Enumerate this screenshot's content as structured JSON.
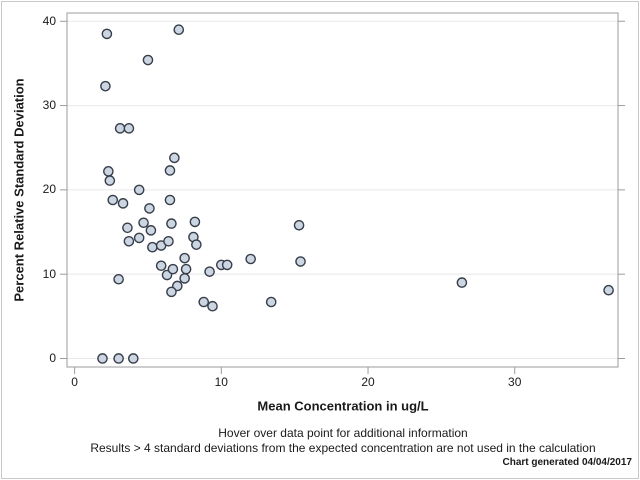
{
  "chart_data": {
    "type": "scatter",
    "title": "",
    "xlabel": "Mean Concentration in ug/L",
    "ylabel": "Percent Relative Standard Deviation",
    "xlim": [
      -0.52,
      37.04
    ],
    "ylim": [
      -1.01,
      40.98
    ],
    "x_ticks": [
      0,
      10,
      20,
      30
    ],
    "y_ticks": [
      0,
      10,
      20,
      30,
      40
    ],
    "grid": "horizontal-only",
    "legend": false,
    "marker": {
      "fill": "#ccd6e3",
      "stroke": "#373e49",
      "radius": 4.6
    },
    "frame_color": "#9b9b9b",
    "grid_color": "#e8e8e8",
    "points": [
      [
        2.2,
        38.5
      ],
      [
        7.1,
        39.0
      ],
      [
        5.0,
        35.4
      ],
      [
        2.1,
        32.3
      ],
      [
        3.1,
        27.3
      ],
      [
        3.7,
        27.3
      ],
      [
        6.8,
        23.8
      ],
      [
        6.5,
        22.3
      ],
      [
        2.3,
        22.2
      ],
      [
        2.4,
        21.1
      ],
      [
        4.4,
        20.0
      ],
      [
        2.6,
        18.8
      ],
      [
        3.3,
        18.4
      ],
      [
        6.5,
        18.8
      ],
      [
        5.1,
        17.8
      ],
      [
        4.7,
        16.1
      ],
      [
        6.6,
        16.0
      ],
      [
        8.2,
        16.2
      ],
      [
        3.6,
        15.5
      ],
      [
        5.2,
        15.2
      ],
      [
        4.4,
        14.3
      ],
      [
        3.7,
        13.9
      ],
      [
        5.3,
        13.2
      ],
      [
        5.9,
        13.4
      ],
      [
        6.4,
        13.9
      ],
      [
        8.1,
        14.4
      ],
      [
        8.3,
        13.5
      ],
      [
        5.9,
        11.0
      ],
      [
        7.5,
        11.9
      ],
      [
        6.3,
        9.9
      ],
      [
        6.7,
        10.6
      ],
      [
        7.6,
        10.6
      ],
      [
        7.5,
        9.5
      ],
      [
        7.0,
        8.6
      ],
      [
        6.6,
        7.9
      ],
      [
        3.0,
        9.4
      ],
      [
        8.8,
        6.7
      ],
      [
        9.4,
        6.2
      ],
      [
        9.2,
        10.3
      ],
      [
        10.0,
        11.1
      ],
      [
        10.4,
        11.1
      ],
      [
        12.0,
        11.8
      ],
      [
        1.9,
        0.0
      ],
      [
        3.0,
        0.0
      ],
      [
        4.0,
        0.0
      ],
      [
        15.3,
        15.8
      ],
      [
        15.4,
        11.5
      ],
      [
        13.4,
        6.7
      ],
      [
        26.4,
        9.0
      ],
      [
        36.4,
        8.1
      ]
    ]
  },
  "footnotes": {
    "line1": "Hover over data point for additional information",
    "line2": "Results > 4 standard deviations from the expected concentration are not used in the calculation"
  },
  "footer": {
    "generated": "Chart generated 04/04/2017"
  }
}
